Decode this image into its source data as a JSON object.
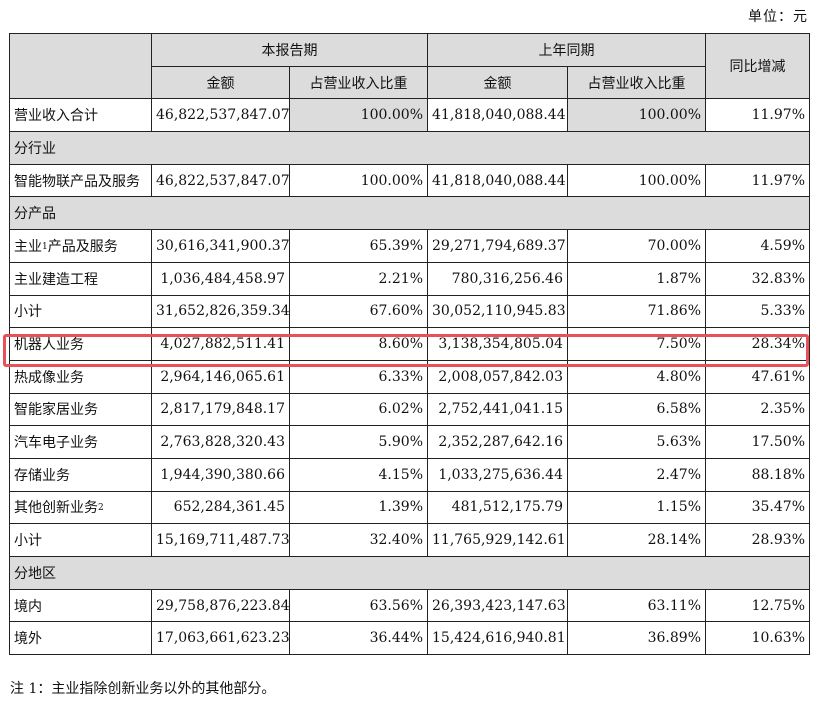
{
  "unit_label": "单位：元",
  "header": {
    "current_period": "本报告期",
    "prior_period": "上年同期",
    "yoy_change": "同比增减",
    "amount": "金额",
    "share": "占营业收入比重"
  },
  "rows": [
    {
      "type": "data",
      "label": "营业收入合计",
      "cur_amount": "46,822,537,847.07",
      "cur_share": "100.00%",
      "prev_amount": "41,818,040,088.44",
      "prev_share": "100.00%",
      "yoy": "11.97%",
      "shaded_share": true
    },
    {
      "type": "section",
      "label": "分行业"
    },
    {
      "type": "data",
      "label": "智能物联产品及服务",
      "cur_amount": "46,822,537,847.07",
      "cur_share": "100.00%",
      "prev_amount": "41,818,040,088.44",
      "prev_share": "100.00%",
      "yoy": "11.97%"
    },
    {
      "type": "section",
      "label": "分产品"
    },
    {
      "type": "data",
      "label": "主业",
      "sup": "1",
      "label_suffix": "产品及服务",
      "cur_amount": "30,616,341,900.37",
      "cur_share": "65.39%",
      "prev_amount": "29,271,794,689.37",
      "prev_share": "70.00%",
      "yoy": "4.59%"
    },
    {
      "type": "data",
      "label": "主业建造工程",
      "cur_amount": "1,036,484,458.97",
      "cur_share": "2.21%",
      "prev_amount": "780,316,256.46",
      "prev_share": "1.87%",
      "yoy": "32.83%"
    },
    {
      "type": "data",
      "label": "小计",
      "indent": true,
      "cur_amount": "31,652,826,359.34",
      "cur_share": "67.60%",
      "prev_amount": "30,052,110,945.83",
      "prev_share": "71.86%",
      "yoy": "5.33%"
    },
    {
      "type": "data",
      "label": "机器人业务",
      "highlighted": true,
      "cur_amount": "4,027,882,511.41",
      "cur_share": "8.60%",
      "prev_amount": "3,138,354,805.04",
      "prev_share": "7.50%",
      "yoy": "28.34%"
    },
    {
      "type": "data",
      "label": "热成像业务",
      "cur_amount": "2,964,146,065.61",
      "cur_share": "6.33%",
      "prev_amount": "2,008,057,842.03",
      "prev_share": "4.80%",
      "yoy": "47.61%"
    },
    {
      "type": "data",
      "label": "智能家居业务",
      "cur_amount": "2,817,179,848.17",
      "cur_share": "6.02%",
      "prev_amount": "2,752,441,041.15",
      "prev_share": "6.58%",
      "yoy": "2.35%"
    },
    {
      "type": "data",
      "label": "汽车电子业务",
      "cur_amount": "2,763,828,320.43",
      "cur_share": "5.90%",
      "prev_amount": "2,352,287,642.16",
      "prev_share": "5.63%",
      "yoy": "17.50%"
    },
    {
      "type": "data",
      "label": "存储业务",
      "cur_amount": "1,944,390,380.66",
      "cur_share": "4.15%",
      "prev_amount": "1,033,275,636.44",
      "prev_share": "2.47%",
      "yoy": "88.18%"
    },
    {
      "type": "data",
      "label": "其他创新业务",
      "sup": "2",
      "cur_amount": "652,284,361.45",
      "cur_share": "1.39%",
      "prev_amount": "481,512,175.79",
      "prev_share": "1.15%",
      "yoy": "35.47%"
    },
    {
      "type": "data",
      "label": "小计",
      "indent": true,
      "cur_amount": "15,169,711,487.73",
      "cur_share": "32.40%",
      "prev_amount": "11,765,929,142.61",
      "prev_share": "28.14%",
      "yoy": "28.93%"
    },
    {
      "type": "section",
      "label": "分地区"
    },
    {
      "type": "data",
      "label": "境内",
      "cur_amount": "29,758,876,223.84",
      "cur_share": "63.56%",
      "prev_amount": "26,393,423,147.63",
      "prev_share": "63.11%",
      "yoy": "12.75%"
    },
    {
      "type": "data",
      "label": "境外",
      "cur_amount": "17,063,661,623.23",
      "cur_share": "36.44%",
      "prev_amount": "15,424,616,940.81",
      "prev_share": "36.89%",
      "yoy": "10.63%"
    }
  ],
  "footnote": "注 1：主业指除创新业务以外的其他部分。",
  "colors": {
    "header_bg": "#dcdcdc",
    "highlight": "#e8515a"
  }
}
